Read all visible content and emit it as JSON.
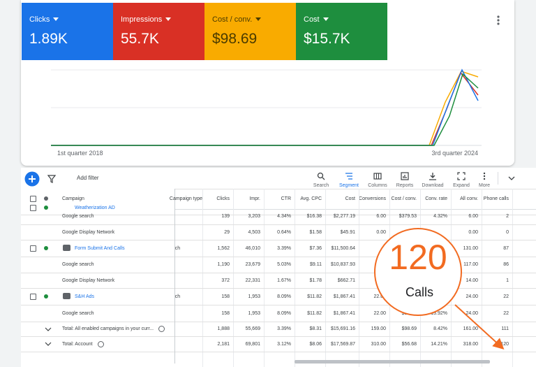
{
  "metrics": [
    {
      "label": "Clicks",
      "value": "1.89K",
      "color": "#1a73e8",
      "text": "#ffffff"
    },
    {
      "label": "Impressions",
      "value": "55.7K",
      "color": "#d93025",
      "text": "#ffffff"
    },
    {
      "label": "Cost / conv.",
      "value": "$98.69",
      "color": "#f9ab00",
      "text": "#4a3b00"
    },
    {
      "label": "Cost",
      "value": "$15.7K",
      "color": "#1e8e3e",
      "text": "#ffffff"
    }
  ],
  "chart": {
    "start_label": "1st quarter 2018",
    "end_label": "3rd quarter 2024"
  },
  "toolbar": {
    "add_filter": "Add filter",
    "buttons": [
      "Search",
      "Segment",
      "Columns",
      "Reports",
      "Download",
      "Expand",
      "More"
    ]
  },
  "table": {
    "headers": [
      "Campaign",
      "Campaign type",
      "Clicks",
      "Impr.",
      "CTR",
      "Avg. CPC",
      "Cost",
      "Conversions",
      "Cost / conv.",
      "Conv. rate",
      "All conv.",
      "Phone calls"
    ],
    "rows": [
      {
        "kind": "campaign",
        "campaign": "Weatherization AD",
        "type": null,
        "cells": [
          null,
          null,
          null,
          null,
          null,
          null,
          null,
          null,
          null,
          null
        ]
      },
      {
        "kind": "sub",
        "campaign": "Google search",
        "type": null,
        "cells": [
          "139",
          "3,203",
          "4.34%",
          "$16.38",
          "$2,277.19",
          "6.00",
          "$379.53",
          "4.32%",
          "6.00",
          "2"
        ]
      },
      {
        "kind": "sub",
        "campaign": "Google Display Network",
        "type": null,
        "cells": [
          "29",
          "4,503",
          "0.64%",
          "$1.58",
          "$45.91",
          "0.00",
          null,
          null,
          "0.00",
          "0"
        ]
      },
      {
        "kind": "campaign",
        "campaign": "Form Submit And Calls",
        "type": "Search",
        "cells": [
          "1,562",
          "46,010",
          "3.39%",
          "$7.36",
          "$11,500.64",
          null,
          null,
          null,
          "131.00",
          "87"
        ]
      },
      {
        "kind": "sub",
        "campaign": "Google search",
        "type": null,
        "cells": [
          "1,190",
          "23,679",
          "5.03%",
          "$9.11",
          "$10,837.93",
          null,
          null,
          null,
          "117.00",
          "86"
        ]
      },
      {
        "kind": "sub",
        "campaign": "Google Display Network",
        "type": null,
        "cells": [
          "372",
          "22,331",
          "1.67%",
          "$1.78",
          "$662.71",
          null,
          null,
          null,
          "14.00",
          "1"
        ]
      },
      {
        "kind": "campaign",
        "campaign": "S&H Ads",
        "type": "Search",
        "cells": [
          "158",
          "1,953",
          "8.09%",
          "$11.82",
          "$1,867.41",
          "22.00",
          null,
          null,
          "24.00",
          "22"
        ]
      },
      {
        "kind": "sub",
        "campaign": "Google search",
        "type": null,
        "cells": [
          "158",
          "1,953",
          "8.09%",
          "$11.82",
          "$1,867.41",
          "22.00",
          "$84.88",
          "13.92%",
          "24.00",
          "22"
        ]
      },
      {
        "kind": "total",
        "campaign": "Total: All enabled campaigns in your curr...",
        "type": null,
        "cells": [
          "1,888",
          "55,669",
          "3.39%",
          "$8.31",
          "$15,691.16",
          "159.00",
          "$98.69",
          "8.42%",
          "161.00",
          "111"
        ]
      },
      {
        "kind": "total",
        "campaign": "Total: Account",
        "type": null,
        "cells": [
          "2,181",
          "69,801",
          "3.12%",
          "$8.06",
          "$17,569.87",
          "310.00",
          "$56.68",
          "14.21%",
          "318.00",
          "120"
        ]
      }
    ]
  },
  "callout": {
    "number": "120",
    "label": "Calls"
  }
}
